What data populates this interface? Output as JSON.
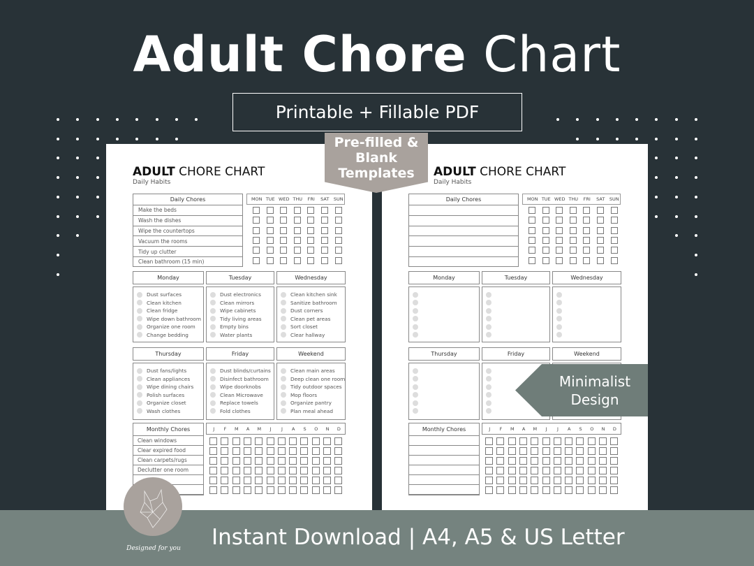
{
  "header": {
    "title_bold": "Adult Chore",
    "title_light": "Chart",
    "subtitle": "Printable + Fillable PDF"
  },
  "tags": {
    "templates": "Pre-filled & Blank Templates",
    "design": "Minimalist Design"
  },
  "footer": {
    "text": "Instant Download | A4, A5 & US Letter",
    "logo_text": "Designed for you"
  },
  "colors": {
    "background": "#283237",
    "band": "#75837f",
    "tag_taupe": "#a9a29d",
    "tag_sage": "#6f7d79"
  },
  "pages": [
    {
      "title_bold": "ADULT",
      "title_light": "CHORE CHART",
      "subtitle": "Daily Habits",
      "daily_header": "Daily Chores",
      "daily": [
        "Make the beds",
        "Wash the dishes",
        "Wipe the countertops",
        "Vacuum the rooms",
        "Tidy up clutter",
        "Clean bathroom (15 min)"
      ],
      "weekdays": [
        "MON",
        "TUE",
        "WED",
        "THU",
        "FRI",
        "SAT",
        "SUN"
      ],
      "groups": [
        {
          "name": "Monday",
          "items": [
            "Dust surfaces",
            "Clean kitchen",
            "Clean fridge",
            "Wipe down bathroom",
            "Organize one room",
            "Change bedding"
          ]
        },
        {
          "name": "Tuesday",
          "items": [
            "Dust electronics",
            "Clean mirrors",
            "Wipe cabinets",
            "Tidy living areas",
            "Empty bins",
            "Water plants"
          ]
        },
        {
          "name": "Wednesday",
          "items": [
            "Clean kitchen sink",
            "Sanitize bathroom",
            "Dust corners",
            "Clean pet areas",
            "Sort closet",
            "Clear hallway"
          ]
        },
        {
          "name": "Thursday",
          "items": [
            "Dust fans/lights",
            "Clean appliances",
            "Wipe dining chairs",
            "Polish surfaces",
            "Organize closet",
            "Wash clothes"
          ]
        },
        {
          "name": "Friday",
          "items": [
            "Dust blinds/curtains",
            "Disinfect bathroom",
            "Wipe doorknobs",
            "Clean Microwave",
            "Replace towels",
            "Fold clothes"
          ]
        },
        {
          "name": "Weekend",
          "items": [
            "Clean main areas",
            "Deep clean one room",
            "Tidy outdoor spaces",
            "Mop floors",
            "Organize pantry",
            "Plan meal ahead"
          ]
        }
      ],
      "monthly_header": "Monthly Chores",
      "monthly": [
        "Clean windows",
        "Clear expired food",
        "Clean carpets/rugs",
        "Declutter one room",
        "",
        "",
        ""
      ],
      "months": [
        "J",
        "F",
        "M",
        "A",
        "M",
        "J",
        "J",
        "A",
        "S",
        "O",
        "N",
        "D"
      ]
    },
    {
      "title_bold": "ADULT",
      "title_light": "CHORE CHART",
      "subtitle": "Daily Habits",
      "daily_header": "Daily Chores",
      "daily": [
        "",
        "",
        "",
        "",
        "",
        ""
      ],
      "weekdays": [
        "MON",
        "TUE",
        "WED",
        "THU",
        "FRI",
        "SAT",
        "SUN"
      ],
      "groups": [
        {
          "name": "Monday",
          "items": [
            "",
            "",
            "",
            "",
            "",
            ""
          ]
        },
        {
          "name": "Tuesday",
          "items": [
            "",
            "",
            "",
            "",
            "",
            ""
          ]
        },
        {
          "name": "Wednesday",
          "items": [
            "",
            "",
            "",
            "",
            "",
            ""
          ]
        },
        {
          "name": "Thursday",
          "items": [
            "",
            "",
            "",
            "",
            "",
            ""
          ]
        },
        {
          "name": "Friday",
          "items": [
            "",
            "",
            "",
            "",
            "",
            ""
          ]
        },
        {
          "name": "Weekend",
          "items": [
            "",
            "",
            "",
            "",
            "",
            ""
          ]
        }
      ],
      "monthly_header": "Monthly Chores",
      "monthly": [
        "",
        "",
        "",
        "",
        "",
        "",
        ""
      ],
      "months": [
        "J",
        "F",
        "M",
        "A",
        "M",
        "J",
        "J",
        "A",
        "S",
        "O",
        "N",
        "D"
      ]
    }
  ]
}
